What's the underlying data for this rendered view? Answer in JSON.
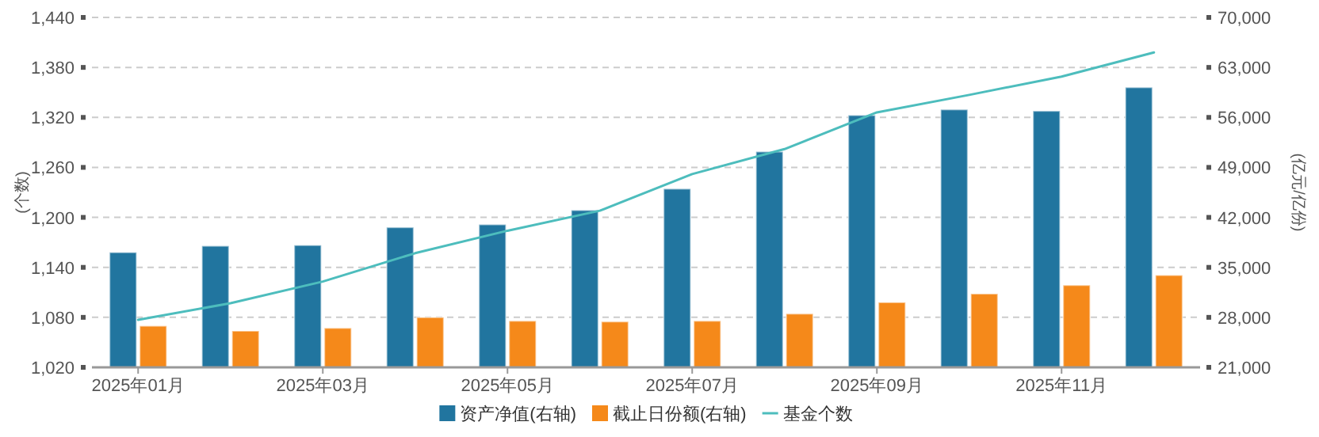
{
  "chart_data": {
    "type": "bar",
    "categories": [
      "2025年01月",
      null,
      "2025年03月",
      null,
      "2025年05月",
      null,
      "2025年07月",
      null,
      "2025年09月",
      null,
      "2025年11月",
      null
    ],
    "series": [
      {
        "name": "资产净值(右轴)",
        "color": "#21759f",
        "axis": "y2",
        "values": [
          37100,
          38000,
          38100,
          40600,
          41000,
          43000,
          46000,
          51200,
          56300,
          57100,
          56900,
          60200
        ]
      },
      {
        "name": "截止日份额(右轴)",
        "color": "#f5891a",
        "axis": "y2",
        "values": [
          26800,
          26100,
          26500,
          28000,
          27500,
          27400,
          27500,
          28500,
          30100,
          31300,
          32500,
          33900
        ]
      },
      {
        "name": "基金个数",
        "color": "#4dbdbd",
        "type": "line",
        "values": [
          1077,
          1097,
          1123,
          1157,
          1184,
          1208,
          1252,
          1282,
          1326,
          1347,
          1369,
          1398
        ]
      }
    ],
    "ylabel": "(个数)",
    "y2label": "(亿元/亿份)",
    "ylim": [
      1020,
      1440
    ],
    "yticks": [
      {
        "value": 1020,
        "label": "1,020"
      },
      {
        "value": 1080,
        "label": "1,080"
      },
      {
        "value": 1140,
        "label": "1,140"
      },
      {
        "value": 1200,
        "label": "1,200"
      },
      {
        "value": 1260,
        "label": "1,260"
      },
      {
        "value": 1320,
        "label": "1,320"
      },
      {
        "value": 1380,
        "label": "1,380"
      },
      {
        "value": 1440,
        "label": "1,440"
      }
    ],
    "y2lim": [
      21000,
      70000
    ],
    "y2ticks": [
      {
        "value": 21000,
        "label": "21,000"
      },
      {
        "value": 28000,
        "label": "28,000"
      },
      {
        "value": 35000,
        "label": "35,000"
      },
      {
        "value": 42000,
        "label": "42,000"
      },
      {
        "value": 49000,
        "label": "49,000"
      },
      {
        "value": 56000,
        "label": "56,000"
      },
      {
        "value": 63000,
        "label": "63,000"
      },
      {
        "value": 70000,
        "label": "70,000"
      }
    ],
    "grid": "y",
    "legend": "bottom"
  }
}
